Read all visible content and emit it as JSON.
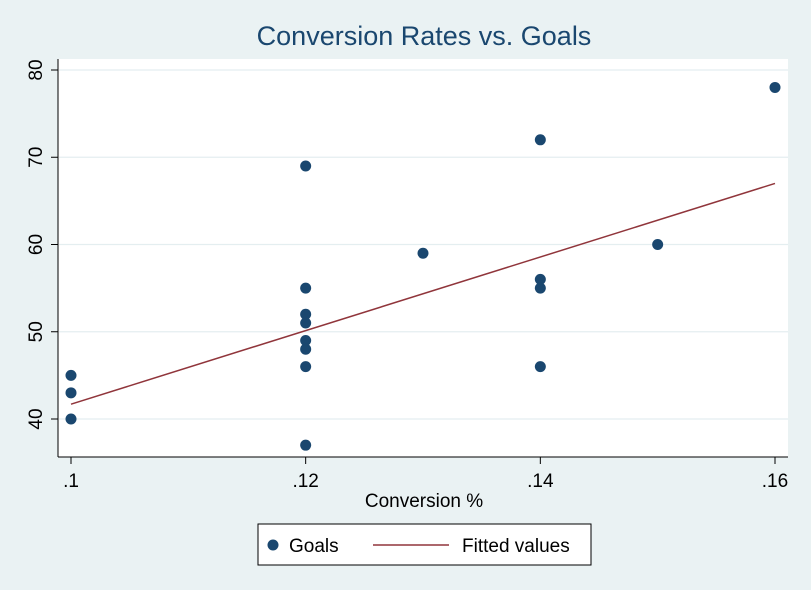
{
  "chart_data": {
    "type": "scatter",
    "title": "Conversion Rates vs. Goals",
    "xlabel": "Conversion %",
    "ylabel": "",
    "xlim": [
      0.1,
      0.16
    ],
    "ylim": [
      36,
      81
    ],
    "x_ticks": [
      0.1,
      0.12,
      0.14,
      0.16
    ],
    "x_tick_labels": [
      ".1",
      ".12",
      ".14",
      ".16"
    ],
    "y_ticks": [
      40,
      50,
      60,
      70,
      80
    ],
    "y_tick_labels": [
      "40",
      "50",
      "60",
      "70",
      "80"
    ],
    "grid": true,
    "legend_position": "bottom",
    "colors": {
      "points": "#1a476f",
      "fit": "#90353b",
      "grid": "#e4eef0",
      "outer": "#eaf2f3",
      "plot": "#ffffff"
    },
    "series": [
      {
        "name": "Goals",
        "kind": "scatter",
        "points": [
          {
            "x": 0.1,
            "y": 45
          },
          {
            "x": 0.1,
            "y": 43
          },
          {
            "x": 0.1,
            "y": 40
          },
          {
            "x": 0.12,
            "y": 69
          },
          {
            "x": 0.12,
            "y": 55
          },
          {
            "x": 0.12,
            "y": 52
          },
          {
            "x": 0.12,
            "y": 51
          },
          {
            "x": 0.12,
            "y": 49
          },
          {
            "x": 0.12,
            "y": 48
          },
          {
            "x": 0.12,
            "y": 46
          },
          {
            "x": 0.12,
            "y": 37
          },
          {
            "x": 0.13,
            "y": 59
          },
          {
            "x": 0.14,
            "y": 72
          },
          {
            "x": 0.14,
            "y": 56
          },
          {
            "x": 0.14,
            "y": 55
          },
          {
            "x": 0.14,
            "y": 46
          },
          {
            "x": 0.15,
            "y": 60
          },
          {
            "x": 0.16,
            "y": 78
          }
        ]
      },
      {
        "name": "Fitted values",
        "kind": "line",
        "points": [
          {
            "x": 0.1,
            "y": 41.7
          },
          {
            "x": 0.16,
            "y": 67
          }
        ]
      }
    ]
  }
}
